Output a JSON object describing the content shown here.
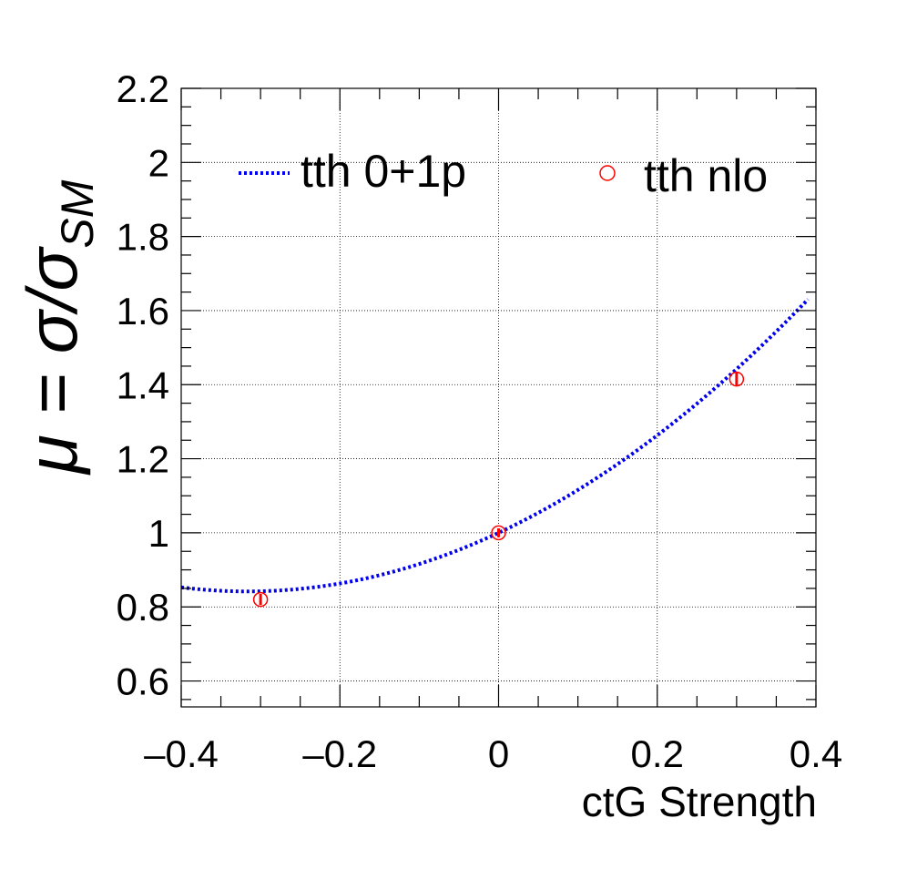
{
  "chart_data": {
    "type": "line",
    "title": "",
    "xlabel": "ctG Strength",
    "ylabel": {
      "prefix": "μ = σ/σ",
      "subscript": "SM"
    },
    "xlim": [
      -0.4,
      0.4
    ],
    "ylim": [
      0.53,
      2.2
    ],
    "xticks": [
      -0.4,
      -0.2,
      0,
      0.2,
      0.4
    ],
    "xtick_labels": [
      "–0.4",
      "–0.2",
      "0",
      "0.2",
      "0.4"
    ],
    "yticks": [
      0.6,
      0.8,
      1.0,
      1.2,
      1.4,
      1.6,
      1.8,
      2.0,
      2.2
    ],
    "ytick_labels": [
      "0.6",
      "0.8",
      "1",
      "1.2",
      "1.4",
      "1.6",
      "1.8",
      "2",
      "2.2"
    ],
    "grid": true,
    "legend_position": "top",
    "series": [
      {
        "name": "tth 0+1p",
        "style": "dotted-line",
        "color": "#0000ee",
        "curve": {
          "form": "quadratic",
          "a": 1.58,
          "b": 1.0,
          "c": 1.0,
          "x_range": [
            -0.4,
            0.39
          ]
        }
      },
      {
        "name": "tth nlo",
        "style": "open-circle-markers",
        "color": "#ff0000",
        "points": [
          {
            "x": -0.3,
            "y": 0.82,
            "err": 0.015
          },
          {
            "x": 0.0,
            "y": 1.0,
            "err": 0.012
          },
          {
            "x": 0.3,
            "y": 1.415,
            "err": 0.018
          }
        ]
      }
    ]
  }
}
